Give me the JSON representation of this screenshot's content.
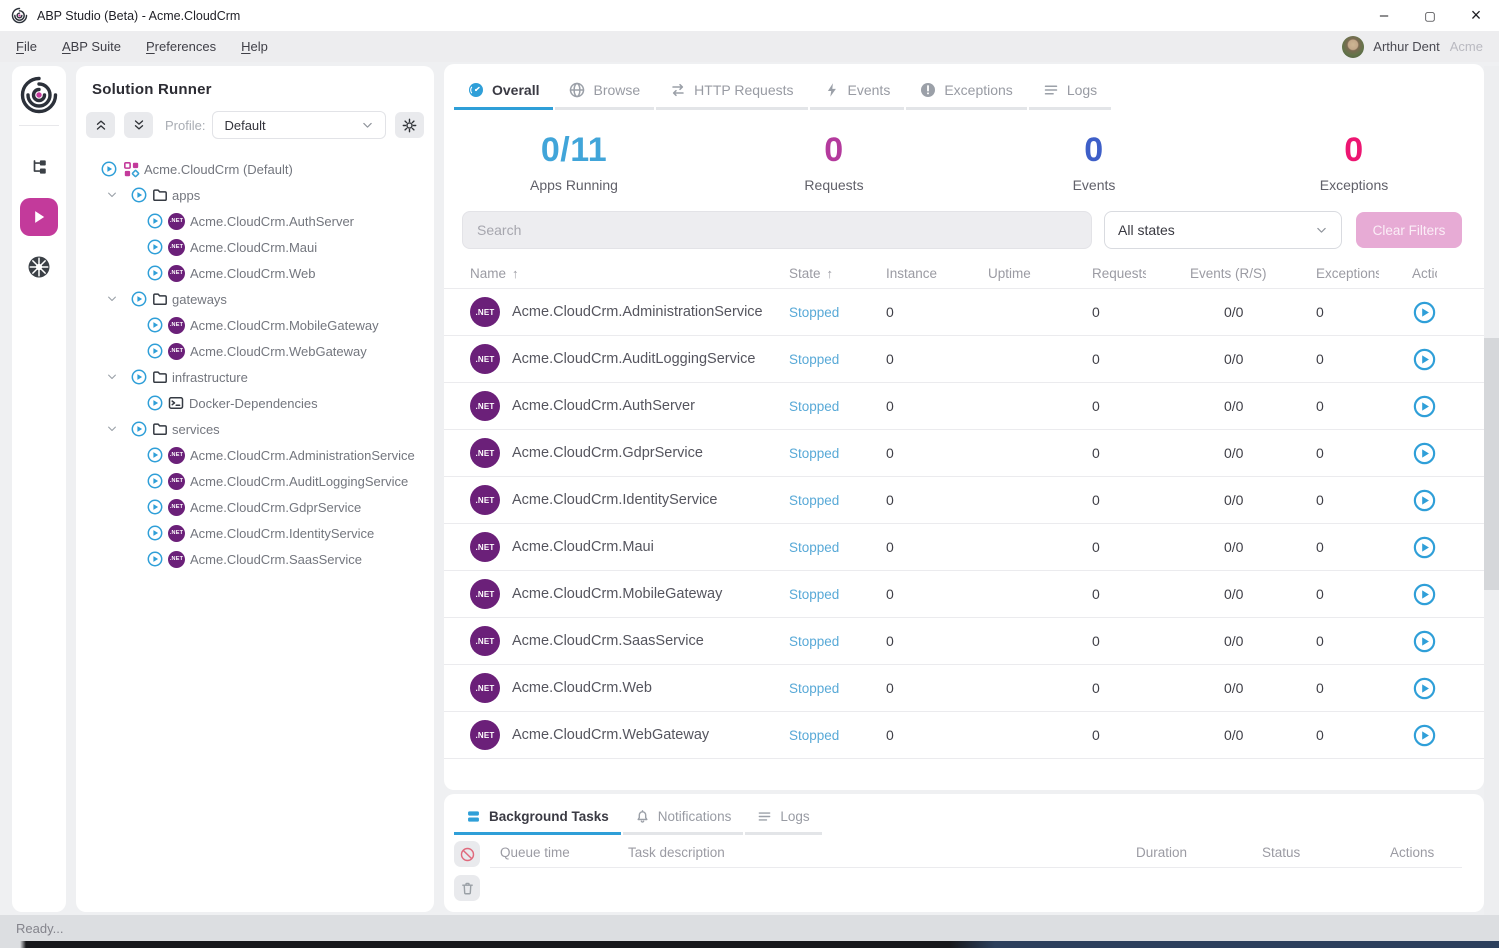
{
  "window": {
    "title": "ABP Studio (Beta) - Acme.CloudCrm",
    "controls": {
      "minimize": "–",
      "maximize": "▢",
      "close": "×"
    }
  },
  "menu": {
    "items": [
      {
        "label": "File"
      },
      {
        "label": "ABP Suite"
      },
      {
        "label": "Preferences"
      },
      {
        "label": "Help"
      }
    ],
    "user": {
      "name": "Arthur Dent",
      "tenant": "Acme"
    }
  },
  "rail": {
    "items": [
      {
        "name": "solution-explorer",
        "icon": "tree-icon",
        "active": false
      },
      {
        "name": "solution-runner",
        "icon": "play-icon",
        "active": true
      },
      {
        "name": "kubernetes",
        "icon": "helm-icon",
        "active": false
      }
    ]
  },
  "solution_runner": {
    "title": "Solution Runner",
    "profile_label": "Profile:",
    "profile_value": "Default",
    "root": {
      "label": "Acme.CloudCrm (Default)"
    },
    "groups": [
      {
        "label": "apps",
        "items": [
          {
            "label": "Acme.CloudCrm.AuthServer",
            "icon": "dotnet"
          },
          {
            "label": "Acme.CloudCrm.Maui",
            "icon": "dotnet"
          },
          {
            "label": "Acme.CloudCrm.Web",
            "icon": "dotnet"
          }
        ]
      },
      {
        "label": "gateways",
        "items": [
          {
            "label": "Acme.CloudCrm.MobileGateway",
            "icon": "dotnet"
          },
          {
            "label": "Acme.CloudCrm.WebGateway",
            "icon": "dotnet"
          }
        ]
      },
      {
        "label": "infrastructure",
        "items": [
          {
            "label": "Docker-Dependencies",
            "icon": "terminal"
          }
        ]
      },
      {
        "label": "services",
        "items": [
          {
            "label": "Acme.CloudCrm.AdministrationService",
            "icon": "dotnet"
          },
          {
            "label": "Acme.CloudCrm.AuditLoggingService",
            "icon": "dotnet"
          },
          {
            "label": "Acme.CloudCrm.GdprService",
            "icon": "dotnet"
          },
          {
            "label": "Acme.CloudCrm.IdentityService",
            "icon": "dotnet"
          },
          {
            "label": "Acme.CloudCrm.SaasService",
            "icon": "dotnet"
          }
        ]
      }
    ]
  },
  "main": {
    "tabs": [
      {
        "label": "Overall",
        "icon": "gauge-icon",
        "active": true
      },
      {
        "label": "Browse",
        "icon": "globe-icon",
        "active": false
      },
      {
        "label": "HTTP Requests",
        "icon": "arrows-icon",
        "active": false
      },
      {
        "label": "Events",
        "icon": "bolt-icon",
        "active": false
      },
      {
        "label": "Exceptions",
        "icon": "exclamation-icon",
        "active": false
      },
      {
        "label": "Logs",
        "icon": "lines-icon",
        "active": false
      }
    ],
    "stats": [
      {
        "value": "0/11",
        "label": "Apps Running",
        "color": "#41a5d9"
      },
      {
        "value": "0",
        "label": "Requests",
        "color": "#b43a9d"
      },
      {
        "value": "0",
        "label": "Events",
        "color": "#3e5fc8"
      },
      {
        "value": "0",
        "label": "Exceptions",
        "color": "#ed1672"
      }
    ],
    "filters": {
      "search_placeholder": "Search",
      "state_filter": "All states",
      "clear_label": "Clear Filters"
    },
    "table": {
      "columns": [
        {
          "label": "Name",
          "sort": "asc"
        },
        {
          "label": "State",
          "sort": "asc"
        },
        {
          "label": "Instance"
        },
        {
          "label": "Uptime"
        },
        {
          "label": "Requests",
          "clip": "clip-requests"
        },
        {
          "label": "Events (R/S)"
        },
        {
          "label": "Exceptions",
          "clip": "clip-exceptions"
        },
        {
          "label": "Actions",
          "clip": "clip-actions"
        }
      ],
      "rows": [
        {
          "name": "Acme.CloudCrm.AdministrationService",
          "state": "Stopped",
          "instance": "0",
          "uptime": "",
          "requests": "0",
          "events": "0/0",
          "exceptions": "0"
        },
        {
          "name": "Acme.CloudCrm.AuditLoggingService",
          "state": "Stopped",
          "instance": "0",
          "uptime": "",
          "requests": "0",
          "events": "0/0",
          "exceptions": "0"
        },
        {
          "name": "Acme.CloudCrm.AuthServer",
          "state": "Stopped",
          "instance": "0",
          "uptime": "",
          "requests": "0",
          "events": "0/0",
          "exceptions": "0"
        },
        {
          "name": "Acme.CloudCrm.GdprService",
          "state": "Stopped",
          "instance": "0",
          "uptime": "",
          "requests": "0",
          "events": "0/0",
          "exceptions": "0"
        },
        {
          "name": "Acme.CloudCrm.IdentityService",
          "state": "Stopped",
          "instance": "0",
          "uptime": "",
          "requests": "0",
          "events": "0/0",
          "exceptions": "0"
        },
        {
          "name": "Acme.CloudCrm.Maui",
          "state": "Stopped",
          "instance": "0",
          "uptime": "",
          "requests": "0",
          "events": "0/0",
          "exceptions": "0"
        },
        {
          "name": "Acme.CloudCrm.MobileGateway",
          "state": "Stopped",
          "instance": "0",
          "uptime": "",
          "requests": "0",
          "events": "0/0",
          "exceptions": "0"
        },
        {
          "name": "Acme.CloudCrm.SaasService",
          "state": "Stopped",
          "instance": "0",
          "uptime": "",
          "requests": "0",
          "events": "0/0",
          "exceptions": "0"
        },
        {
          "name": "Acme.CloudCrm.Web",
          "state": "Stopped",
          "instance": "0",
          "uptime": "",
          "requests": "0",
          "events": "0/0",
          "exceptions": "0"
        },
        {
          "name": "Acme.CloudCrm.WebGateway",
          "state": "Stopped",
          "instance": "0",
          "uptime": "",
          "requests": "0",
          "events": "0/0",
          "exceptions": "0"
        }
      ]
    }
  },
  "bottom_panel": {
    "tabs": [
      {
        "label": "Background Tasks",
        "icon": "stack-icon",
        "active": true
      },
      {
        "label": "Notifications",
        "icon": "bell-icon",
        "active": false
      },
      {
        "label": "Logs",
        "icon": "lines-icon",
        "active": false
      }
    ],
    "columns": [
      "Queue time",
      "Task description",
      "Duration",
      "Status",
      "Actions"
    ]
  },
  "status_bar": {
    "text": "Ready..."
  },
  "colors": {
    "accent_blue": "#2f9fd8",
    "brand_magenta": "#c33a9b",
    "dotnet_purple": "#6b2079",
    "stopped_state": "#58a9d7"
  }
}
